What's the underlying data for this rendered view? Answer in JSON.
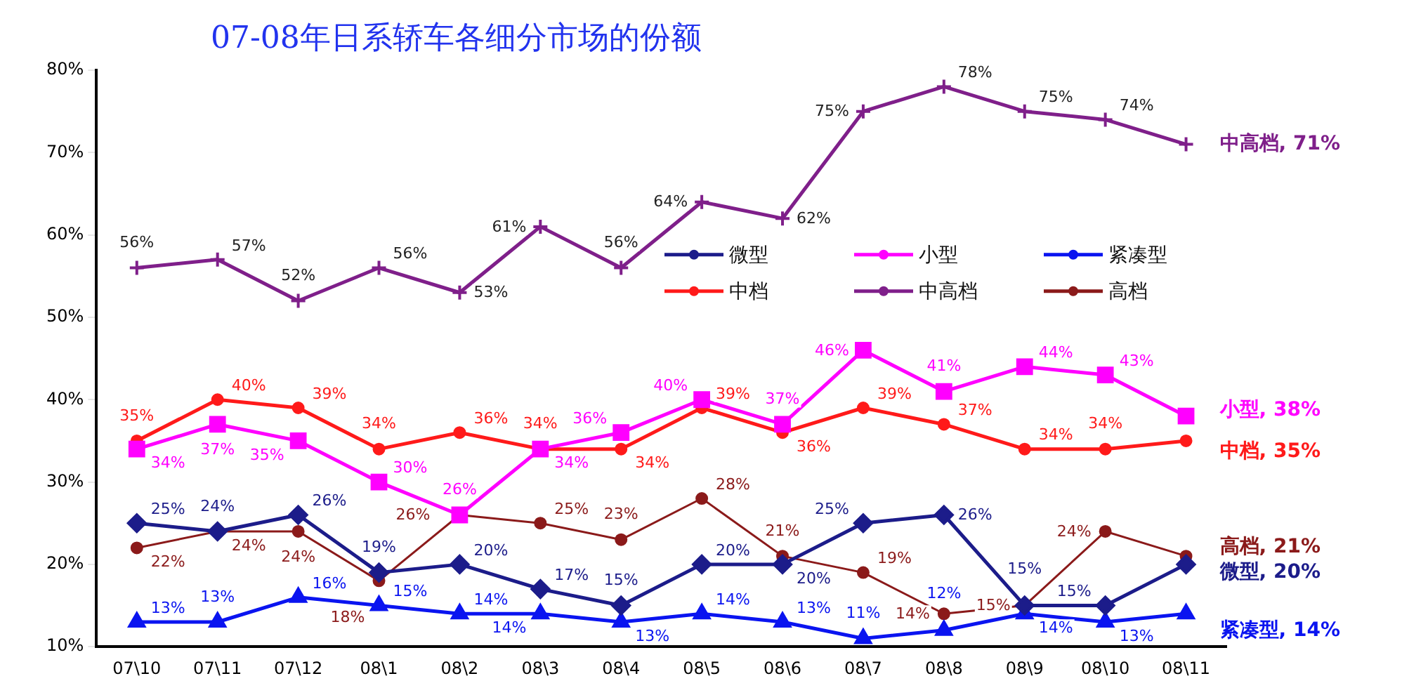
{
  "chart_data": {
    "type": "line",
    "title": "07-08年日系轿车各细分市场的份额",
    "categories": [
      "07\\10",
      "07\\11",
      "07\\12",
      "08\\1",
      "08\\2",
      "08\\3",
      "08\\4",
      "08\\5",
      "08\\6",
      "08\\7",
      "08\\8",
      "08\\9",
      "08\\10",
      "08\\11"
    ],
    "series": [
      {
        "name": "微型",
        "color": "#1c1c8a",
        "marker": "diamond",
        "values": [
          25,
          24,
          26,
          19,
          20,
          17,
          15,
          20,
          20,
          25,
          26,
          15,
          15,
          20
        ],
        "value_labels": [
          "25%",
          "24%",
          "26%",
          "19%",
          "20%",
          "17%",
          "15%",
          "20%",
          "20%",
          "25%",
          "26%",
          "15%",
          "15%",
          null
        ]
      },
      {
        "name": "小型",
        "color": "#ff00ff",
        "marker": "square",
        "values": [
          34,
          37,
          35,
          30,
          26,
          34,
          36,
          40,
          37,
          46,
          41,
          44,
          43,
          38
        ],
        "value_labels": [
          "34%",
          "37%",
          "35%",
          "30%",
          "26%",
          "34%",
          "36%",
          "40%",
          "37%",
          "46%",
          "41%",
          "44%",
          "43%",
          null
        ]
      },
      {
        "name": "紧凑型",
        "color": "#0a14f0",
        "marker": "triangle",
        "values": [
          13,
          13,
          16,
          15,
          14,
          14,
          13,
          14,
          13,
          11,
          12,
          14,
          13,
          14
        ],
        "value_labels": [
          "13%",
          "13%",
          "16%",
          "15%",
          "14%",
          "14%",
          "13%",
          "14%",
          "13%",
          "11%",
          "12%",
          "14%",
          "13%",
          null
        ]
      },
      {
        "name": "中档",
        "color": "#ff1a1a",
        "marker": "circle",
        "values": [
          35,
          40,
          39,
          34,
          36,
          34,
          34,
          39,
          36,
          39,
          37,
          34,
          34,
          35
        ],
        "value_labels": [
          "35%",
          "40%",
          "39%",
          "34%",
          "36%",
          "34%",
          "34%",
          "39%",
          "36%",
          "39%",
          "37%",
          "34%",
          "34%",
          null
        ]
      },
      {
        "name": "中高档",
        "color": "#7f1f8a",
        "marker": "cross",
        "values": [
          56,
          57,
          52,
          56,
          53,
          61,
          56,
          64,
          62,
          75,
          78,
          75,
          74,
          71
        ],
        "value_labels": [
          "56%",
          "57%",
          "52%",
          "56%",
          "53%",
          "61%",
          "56%",
          "64%",
          "62%",
          "75%",
          "78%",
          "75%",
          "74%",
          null
        ]
      },
      {
        "name": "高档",
        "color": "#8b1a1a",
        "marker": "circle",
        "values": [
          22,
          24,
          24,
          18,
          26,
          25,
          23,
          28,
          21,
          19,
          14,
          15,
          24,
          21
        ],
        "value_labels": [
          "22%",
          "24%",
          "24%",
          "18%",
          "26%",
          "25%",
          "23%",
          "28%",
          "21%",
          "19%",
          "14%",
          "15%",
          "24%",
          null
        ]
      }
    ],
    "annotations": [
      {
        "text": "微型, 20%",
        "x": "08\\11",
        "y": 20
      },
      {
        "text": "小型, 38%",
        "x": "08\\11",
        "y": 38
      },
      {
        "text": "紧凑型, 14%",
        "x": "08\\11",
        "y": 14
      },
      {
        "text": "中档, 35%",
        "x": "08\\11",
        "y": 35
      },
      {
        "text": "中高档, 71%",
        "x": "08\\11",
        "y": 71
      },
      {
        "text": "高档, 21%",
        "x": "08\\11",
        "y": 21
      }
    ],
    "ylim": [
      10,
      80
    ],
    "yticks": [
      {
        "value": 10,
        "label": "10%"
      },
      {
        "value": 20,
        "label": "20%"
      },
      {
        "value": 30,
        "label": "30%"
      },
      {
        "value": 40,
        "label": "40%"
      },
      {
        "value": 50,
        "label": "50%"
      },
      {
        "value": 60,
        "label": "60%"
      },
      {
        "value": 70,
        "label": "70%"
      },
      {
        "value": 80,
        "label": "80%"
      }
    ],
    "grid": false,
    "legend": "center right"
  }
}
